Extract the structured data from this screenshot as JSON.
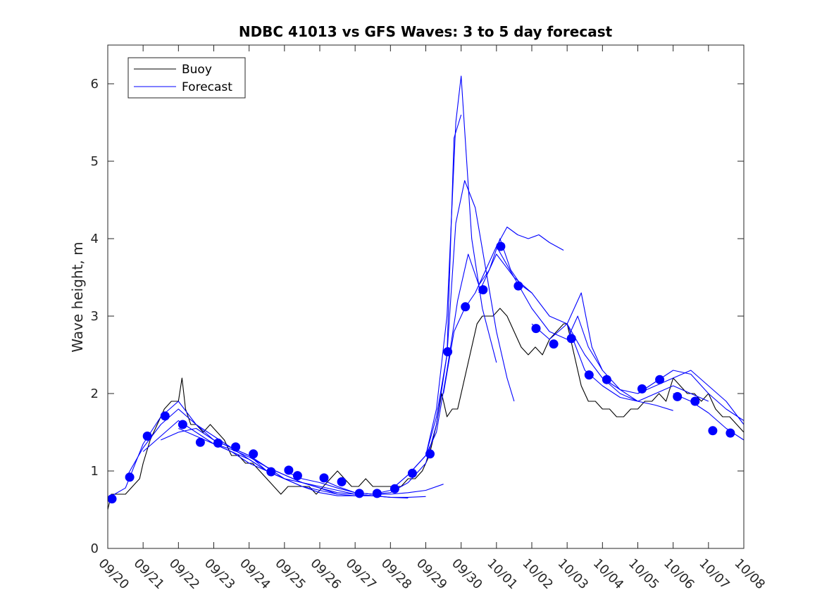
{
  "chart_data": {
    "type": "line",
    "title": "NDBC 41013 vs GFS Waves: 3 to 5 day forecast",
    "xlabel": "",
    "ylabel": "Wave height, m",
    "xlim": [
      0,
      18
    ],
    "ylim": [
      0,
      6.5
    ],
    "yticks": [
      0,
      1,
      2,
      3,
      4,
      5,
      6
    ],
    "xtick_labels": [
      "09/20",
      "09/21",
      "09/22",
      "09/23",
      "09/24",
      "09/25",
      "09/26",
      "09/27",
      "09/28",
      "09/29",
      "09/30",
      "10/01",
      "10/02",
      "10/03",
      "10/04",
      "10/05",
      "10/06",
      "10/07",
      "10/08"
    ],
    "legend": {
      "position": "top-left",
      "entries": [
        "Buoy",
        "Forecast"
      ]
    },
    "colors": {
      "buoy": "#000000",
      "forecast": "#0000ff",
      "axis": "#262626"
    },
    "series": [
      {
        "name": "Buoy",
        "style": "line",
        "x": [
          0,
          0.1,
          0.3,
          0.5,
          0.7,
          0.9,
          1.0,
          1.2,
          1.4,
          1.6,
          1.8,
          2.0,
          2.1,
          2.2,
          2.35,
          2.5,
          2.7,
          2.9,
          3.1,
          3.3,
          3.5,
          3.7,
          3.9,
          4.1,
          4.3,
          4.5,
          4.7,
          4.9,
          5.1,
          5.3,
          5.5,
          5.7,
          5.9,
          6.1,
          6.3,
          6.5,
          6.7,
          6.9,
          7.1,
          7.3,
          7.5,
          7.7,
          7.9,
          8.1,
          8.3,
          8.5,
          8.7,
          8.9,
          9.1,
          9.3,
          9.45,
          9.6,
          9.75,
          9.9,
          10.0,
          10.15,
          10.3,
          10.45,
          10.6,
          10.75,
          10.9,
          11.1,
          11.3,
          11.5,
          11.7,
          11.9,
          12.1,
          12.3,
          12.5,
          12.7,
          12.9,
          13.0,
          13.2,
          13.4,
          13.6,
          13.8,
          14.0,
          14.2,
          14.4,
          14.6,
          14.8,
          15.0,
          15.2,
          15.4,
          15.6,
          15.8,
          16.0,
          16.2,
          16.4,
          16.6,
          16.8,
          17.0,
          17.2,
          17.4,
          17.6,
          17.8,
          18.0
        ],
        "y": [
          0.5,
          0.7,
          0.7,
          0.7,
          0.8,
          0.9,
          1.1,
          1.4,
          1.6,
          1.8,
          1.9,
          1.9,
          2.2,
          1.8,
          1.6,
          1.6,
          1.5,
          1.6,
          1.5,
          1.4,
          1.2,
          1.2,
          1.1,
          1.1,
          1.0,
          0.9,
          0.8,
          0.7,
          0.8,
          0.8,
          0.8,
          0.8,
          0.7,
          0.8,
          0.9,
          1.0,
          0.9,
          0.8,
          0.8,
          0.9,
          0.8,
          0.8,
          0.8,
          0.8,
          0.8,
          0.9,
          0.9,
          1.0,
          1.2,
          1.6,
          2.0,
          1.7,
          1.8,
          1.8,
          2.0,
          2.3,
          2.6,
          2.9,
          3.0,
          3.0,
          3.0,
          3.1,
          3.0,
          2.8,
          2.6,
          2.5,
          2.6,
          2.5,
          2.7,
          2.8,
          2.9,
          2.9,
          2.5,
          2.1,
          1.9,
          1.9,
          1.8,
          1.8,
          1.7,
          1.7,
          1.8,
          1.8,
          1.9,
          1.9,
          2.0,
          1.9,
          2.2,
          2.1,
          2.0,
          2.0,
          1.9,
          2.0,
          1.8,
          1.7,
          1.7,
          1.6,
          1.5
        ]
      },
      {
        "name": "Forecast",
        "style": "line",
        "x": [
          0,
          0.5,
          1.0,
          1.5,
          2.0,
          2.5,
          3.0,
          3.5,
          4.0,
          4.5,
          5.0
        ],
        "y": [
          0.65,
          0.78,
          1.35,
          1.7,
          1.9,
          1.6,
          1.45,
          1.3,
          1.15,
          1.0,
          0.9
        ]
      },
      {
        "name": "Forecast",
        "style": "line",
        "x": [
          0.5,
          1.0,
          1.5,
          2.0,
          2.5,
          3.0,
          3.5,
          4.0,
          4.5,
          5.0,
          5.5
        ],
        "y": [
          0.9,
          1.3,
          1.6,
          1.8,
          1.6,
          1.4,
          1.3,
          1.2,
          1.05,
          0.9,
          0.85
        ]
      },
      {
        "name": "Forecast",
        "style": "line",
        "x": [
          1.0,
          1.5,
          2.0,
          2.5,
          3.0,
          3.5,
          4.0,
          4.5,
          5.0,
          5.5,
          6.0,
          6.5
        ],
        "y": [
          1.25,
          1.45,
          1.65,
          1.5,
          1.35,
          1.25,
          1.15,
          1.0,
          0.9,
          0.8,
          0.75,
          0.7
        ]
      },
      {
        "name": "Forecast",
        "style": "line",
        "x": [
          1.5,
          2.0,
          2.5,
          3.0,
          3.5,
          4.0,
          4.5,
          5.0,
          5.5,
          6.0,
          6.5,
          7.0
        ],
        "y": [
          1.4,
          1.5,
          1.55,
          1.4,
          1.3,
          1.2,
          1.05,
          0.95,
          0.85,
          0.78,
          0.7,
          0.68
        ]
      },
      {
        "name": "Forecast",
        "style": "line",
        "x": [
          2.0,
          2.5,
          3.0,
          3.5,
          4.0,
          4.5,
          5.0,
          5.5,
          6.0,
          6.5,
          7.0,
          7.5
        ],
        "y": [
          1.55,
          1.45,
          1.35,
          1.25,
          1.1,
          1.0,
          0.9,
          0.8,
          0.72,
          0.68,
          0.68,
          0.68
        ]
      },
      {
        "name": "Forecast",
        "style": "line",
        "x": [
          3.0,
          3.5,
          4.0,
          4.5,
          5.0,
          5.5,
          6.0,
          6.5,
          7.0,
          7.5,
          8.0,
          8.5
        ],
        "y": [
          1.35,
          1.28,
          1.18,
          1.05,
          0.95,
          0.85,
          0.78,
          0.72,
          0.7,
          0.68,
          0.66,
          0.65
        ]
      },
      {
        "name": "Forecast",
        "style": "line",
        "x": [
          4.0,
          4.5,
          5.0,
          5.5,
          6.0,
          6.5,
          7.0,
          7.5,
          8.0,
          8.5,
          9.0
        ],
        "y": [
          1.2,
          1.0,
          0.9,
          0.85,
          0.8,
          0.75,
          0.7,
          0.68,
          0.66,
          0.66,
          0.67
        ]
      },
      {
        "name": "Forecast",
        "style": "line",
        "x": [
          5.0,
          5.5,
          6.0,
          6.5,
          7.0,
          7.5,
          8.0,
          8.5,
          9.0,
          9.5
        ],
        "y": [
          1.0,
          0.9,
          0.85,
          0.78,
          0.72,
          0.7,
          0.7,
          0.72,
          0.75,
          0.83
        ]
      },
      {
        "name": "Forecast",
        "style": "line",
        "x": [
          6.0,
          6.5,
          7.0,
          7.5,
          8.0,
          8.5,
          9.0,
          9.3,
          9.6,
          9.8,
          10.0
        ],
        "y": [
          0.9,
          0.8,
          0.72,
          0.7,
          0.72,
          0.85,
          1.1,
          1.6,
          2.5,
          5.3,
          5.6
        ]
      },
      {
        "name": "Forecast",
        "style": "line",
        "x": [
          7.0,
          7.5,
          8.0,
          8.5,
          9.0,
          9.3,
          9.6,
          9.85,
          10.0,
          10.3,
          10.6,
          11.0
        ],
        "y": [
          0.72,
          0.7,
          0.75,
          0.95,
          1.2,
          1.8,
          3.0,
          5.5,
          6.1,
          4.0,
          3.1,
          2.4
        ]
      },
      {
        "name": "Forecast",
        "style": "line",
        "x": [
          8.0,
          8.5,
          9.0,
          9.3,
          9.6,
          9.85,
          10.1,
          10.4,
          10.7,
          11.0,
          11.3,
          11.5
        ],
        "y": [
          0.75,
          0.95,
          1.2,
          1.7,
          2.5,
          4.2,
          4.75,
          4.4,
          3.6,
          2.8,
          2.2,
          1.9
        ]
      },
      {
        "name": "Forecast",
        "style": "line",
        "x": [
          9.0,
          9.3,
          9.6,
          9.9,
          10.2,
          10.5,
          10.8,
          11.1,
          11.4,
          11.7,
          12.0
        ],
        "y": [
          1.2,
          1.5,
          2.3,
          3.2,
          3.8,
          3.4,
          3.6,
          4.0,
          3.6,
          3.4,
          3.3
        ]
      },
      {
        "name": "Forecast",
        "style": "line",
        "x": [
          9.5,
          9.8,
          10.1,
          10.4,
          10.7,
          11.0,
          11.3,
          11.6,
          11.9,
          12.2,
          12.5,
          12.9
        ],
        "y": [
          2.0,
          2.8,
          3.1,
          3.3,
          3.6,
          3.9,
          4.15,
          4.05,
          4.0,
          4.05,
          3.95,
          3.85
        ]
      },
      {
        "name": "Forecast",
        "style": "line",
        "x": [
          10.5,
          11.0,
          11.5,
          12.0,
          12.5,
          13.0,
          13.4,
          13.7,
          14.0
        ],
        "y": [
          3.3,
          3.8,
          3.5,
          3.3,
          3.0,
          2.9,
          3.3,
          2.6,
          2.3
        ]
      },
      {
        "name": "Forecast",
        "style": "line",
        "x": [
          11.0,
          11.5,
          12.0,
          12.5,
          13.0,
          13.3,
          13.6,
          14.0,
          14.5,
          15.0
        ],
        "y": [
          3.9,
          3.5,
          3.1,
          2.8,
          2.7,
          3.0,
          2.6,
          2.3,
          2.05,
          1.9
        ]
      },
      {
        "name": "Forecast",
        "style": "line",
        "x": [
          12.0,
          12.5,
          13.0,
          13.5,
          14.0,
          14.5,
          15.0,
          15.5,
          16.0
        ],
        "y": [
          2.9,
          2.7,
          2.9,
          2.5,
          2.2,
          2.0,
          1.9,
          1.85,
          1.78
        ]
      },
      {
        "name": "Forecast",
        "style": "line",
        "x": [
          13.0,
          13.5,
          14.0,
          14.5,
          15.0,
          15.5,
          16.0,
          16.5,
          17.0
        ],
        "y": [
          2.9,
          2.3,
          2.1,
          1.95,
          1.9,
          2.0,
          2.1,
          2.0,
          1.9
        ]
      },
      {
        "name": "Forecast",
        "style": "line",
        "x": [
          14.0,
          14.5,
          15.0,
          15.5,
          16.0,
          16.5,
          17.0,
          17.5,
          18.0
        ],
        "y": [
          2.2,
          2.05,
          2.0,
          2.1,
          2.2,
          2.3,
          2.1,
          1.9,
          1.6
        ]
      },
      {
        "name": "Forecast",
        "style": "line",
        "x": [
          15.0,
          15.5,
          16.0,
          16.5,
          17.0,
          17.5,
          18.0
        ],
        "y": [
          2.0,
          2.15,
          2.3,
          2.25,
          2.0,
          1.8,
          1.65
        ]
      },
      {
        "name": "Forecast",
        "style": "line",
        "x": [
          16.0,
          16.5,
          17.0,
          17.5,
          18.0
        ],
        "y": [
          2.0,
          1.9,
          1.75,
          1.55,
          1.4
        ]
      },
      {
        "name": "Forecast points",
        "style": "markers",
        "x": [
          0.12,
          0.62,
          1.12,
          1.62,
          2.12,
          2.62,
          3.12,
          3.62,
          4.12,
          4.62,
          5.12,
          5.37,
          6.12,
          6.62,
          7.12,
          7.62,
          8.12,
          8.62,
          9.12,
          9.62,
          10.12,
          10.62,
          11.12,
          11.62,
          12.12,
          12.62,
          13.12,
          13.62,
          14.12,
          15.12,
          15.62,
          16.12,
          16.62,
          17.12,
          17.62
        ],
        "y": [
          0.64,
          0.92,
          1.45,
          1.71,
          1.6,
          1.37,
          1.36,
          1.31,
          1.22,
          0.99,
          1.01,
          0.94,
          0.91,
          0.86,
          0.71,
          0.71,
          0.77,
          0.97,
          1.22,
          2.54,
          3.12,
          3.34,
          3.9,
          3.39,
          2.84,
          2.64,
          2.71,
          2.24,
          2.18,
          2.06,
          2.18,
          1.96,
          1.9,
          1.52,
          1.49
        ]
      }
    ]
  }
}
